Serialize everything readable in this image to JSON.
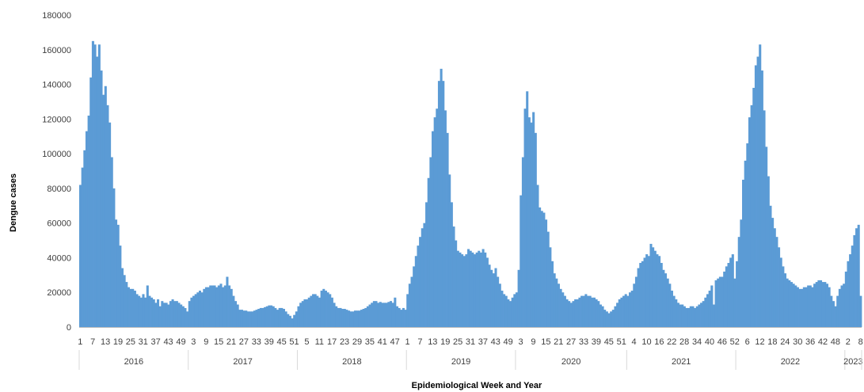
{
  "chart_data": {
    "type": "bar",
    "title": "",
    "xlabel": "Epidemiological Week and Year",
    "ylabel": "Dengue cases",
    "ylim": [
      0,
      180000
    ],
    "yticks": [
      "0",
      "20000",
      "40000",
      "60000",
      "80000",
      "100000",
      "120000",
      "140000",
      "160000",
      "180000"
    ],
    "grid": false,
    "legend": "none",
    "bar_color": "#5b9bd5",
    "years": [
      {
        "label": "2016",
        "weeks": 52,
        "week_labels": [
          "1",
          "7",
          "13",
          "19",
          "25",
          "31",
          "37",
          "43",
          "49"
        ],
        "week_label_start": 1,
        "week_label_step": 6,
        "values": [
          82000,
          92000,
          102000,
          113000,
          122000,
          144000,
          165000,
          163000,
          156000,
          163000,
          148000,
          134000,
          139000,
          128000,
          118000,
          98000,
          80000,
          62000,
          59000,
          47000,
          34000,
          30000,
          26000,
          23000,
          22000,
          22000,
          21000,
          19000,
          18000,
          17000,
          19000,
          17000,
          24000,
          18000,
          17000,
          16000,
          14000,
          16000,
          12000,
          15000,
          14000,
          14000,
          13000,
          15000,
          16000,
          15000,
          15000,
          14000,
          13000,
          12000,
          11000,
          9000
        ]
      },
      {
        "label": "2017",
        "weeks": 52,
        "week_labels": [
          "3",
          "9",
          "15",
          "21",
          "27",
          "33",
          "39",
          "45",
          "51"
        ],
        "week_label_start": 3,
        "week_label_step": 6,
        "values": [
          15000,
          17000,
          18000,
          19000,
          20000,
          21000,
          20000,
          22000,
          23000,
          23000,
          24000,
          24000,
          24000,
          23000,
          24000,
          25000,
          23000,
          24000,
          29000,
          24000,
          22000,
          18000,
          15000,
          13000,
          10000,
          10000,
          9500,
          9500,
          9000,
          9000,
          9000,
          9500,
          10000,
          10500,
          11000,
          11000,
          11500,
          12000,
          12500,
          12500,
          12000,
          11000,
          10000,
          11000,
          11000,
          10500,
          9000,
          7500,
          6500,
          5000,
          7000,
          9000
        ]
      },
      {
        "label": "2018",
        "weeks": 52,
        "week_labels": [
          "5",
          "11",
          "17",
          "23",
          "29",
          "35",
          "41",
          "47"
        ],
        "week_label_start": 5,
        "week_label_step": 6,
        "values": [
          12000,
          14000,
          15000,
          16000,
          16000,
          17000,
          18000,
          19000,
          19000,
          18000,
          17000,
          21000,
          22000,
          21000,
          20000,
          19000,
          17000,
          14000,
          12000,
          11000,
          11000,
          10500,
          10500,
          10000,
          9500,
          9000,
          9000,
          9500,
          9500,
          9500,
          10000,
          10500,
          11000,
          12000,
          13000,
          14000,
          15000,
          15000,
          14000,
          14500,
          14000,
          14000,
          14000,
          14500,
          15000,
          14000,
          17000,
          12000,
          11000,
          10000,
          11000,
          10000
        ]
      },
      {
        "label": "2019",
        "weeks": 52,
        "week_labels": [
          "1",
          "7",
          "13",
          "19",
          "25",
          "31",
          "37",
          "43",
          "49"
        ],
        "week_label_start": 1,
        "week_label_step": 6,
        "values": [
          19000,
          25000,
          29000,
          35000,
          41000,
          47000,
          52000,
          57000,
          60000,
          72000,
          86000,
          98000,
          113000,
          121000,
          126000,
          142000,
          149000,
          142000,
          125000,
          112000,
          88000,
          72000,
          58000,
          50000,
          44000,
          43000,
          42000,
          41000,
          42000,
          45000,
          44000,
          43000,
          42000,
          43000,
          44000,
          43000,
          45000,
          43000,
          40000,
          36000,
          33000,
          31000,
          34000,
          29000,
          25000,
          21000,
          19000,
          18000,
          16000,
          15000,
          17000,
          19000
        ]
      },
      {
        "label": "2020",
        "weeks": 53,
        "week_labels": [
          "3",
          "9",
          "15",
          "21",
          "27",
          "33",
          "39",
          "45",
          "51"
        ],
        "week_label_start": 3,
        "week_label_step": 6,
        "values": [
          20000,
          33000,
          76000,
          98000,
          126000,
          136000,
          121000,
          118000,
          124000,
          112000,
          82000,
          69000,
          67000,
          66000,
          62000,
          55000,
          46000,
          38000,
          31000,
          28000,
          25000,
          22000,
          20000,
          18000,
          16000,
          15000,
          14000,
          15000,
          16000,
          16000,
          17000,
          18000,
          18000,
          19000,
          18000,
          18000,
          17000,
          17000,
          16000,
          15000,
          13000,
          12000,
          10000,
          9000,
          8000,
          9000,
          10000,
          12000,
          14000,
          16000,
          17000,
          18000,
          19000
        ]
      },
      {
        "label": "2021",
        "weeks": 52,
        "week_labels": [
          "4",
          "10",
          "16",
          "22",
          "28",
          "34",
          "40",
          "46",
          "52"
        ],
        "week_label_start": 4,
        "week_label_step": 6,
        "values": [
          18000,
          20000,
          21000,
          25000,
          29000,
          34000,
          37000,
          38000,
          40000,
          42000,
          41000,
          48000,
          46000,
          44000,
          42000,
          41000,
          37000,
          33000,
          31000,
          28000,
          25000,
          21000,
          18000,
          16000,
          14000,
          13000,
          13000,
          12000,
          11000,
          11000,
          12000,
          12000,
          11000,
          12000,
          13000,
          14000,
          15000,
          17000,
          19000,
          21000,
          24000,
          13000,
          27000,
          28000,
          29000,
          29000,
          32000,
          35000,
          37000,
          40000,
          42000,
          28000
        ]
      },
      {
        "label": "2022",
        "weeks": 52,
        "week_labels": [
          "6",
          "12",
          "18",
          "24",
          "30",
          "36",
          "42",
          "48"
        ],
        "week_label_start": 6,
        "week_label_step": 6,
        "values": [
          38000,
          52000,
          62000,
          85000,
          96000,
          106000,
          121000,
          128000,
          138000,
          151000,
          156000,
          163000,
          148000,
          125000,
          104000,
          87000,
          70000,
          63000,
          57000,
          52000,
          46000,
          40000,
          35000,
          31000,
          28000,
          27000,
          26000,
          25000,
          24000,
          23000,
          22000,
          22000,
          23000,
          23000,
          24000,
          24000,
          23000,
          25000,
          26000,
          27000,
          27000,
          26000,
          26000,
          25000,
          23000,
          18000,
          15000,
          12000,
          18000,
          22000,
          24000,
          25000
        ]
      },
      {
        "label": "2023",
        "weeks": 8,
        "week_labels": [
          "2",
          "8"
        ],
        "week_label_start": 2,
        "week_label_step": 6,
        "values": [
          32000,
          38000,
          42000,
          47000,
          53000,
          57000,
          59000,
          18000
        ]
      }
    ]
  }
}
